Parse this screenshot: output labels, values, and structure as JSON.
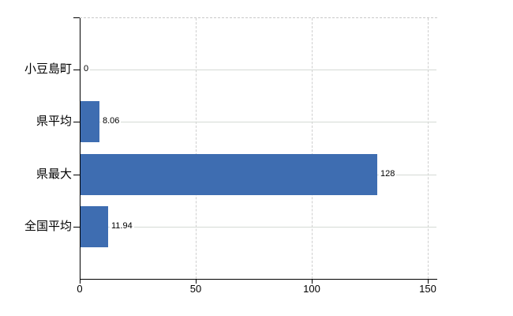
{
  "chart_data": {
    "type": "bar",
    "orientation": "horizontal",
    "title": "",
    "legend": "none",
    "categories": [
      "小豆島町",
      "県平均",
      "県最大",
      "全国平均"
    ],
    "values": [
      0,
      8.06,
      128,
      11.94
    ],
    "value_labels": [
      "0",
      "8.06",
      "128",
      "11.94"
    ],
    "x_ticks": [
      "0",
      "50",
      "100",
      "150"
    ],
    "x_tick_values": [
      0,
      50,
      100,
      150
    ],
    "xlim": [
      0,
      154
    ],
    "grid": "dashed vertical gridlines at x ticks; light solid horizontal line per category; dashed top plot border",
    "colors": {
      "bar": "#3e6db1",
      "axis": "#000000",
      "vertical_grid": "#cfcfcf",
      "row_grid": "#d5dad5",
      "text": "#000000",
      "background": "#ffffff"
    }
  }
}
